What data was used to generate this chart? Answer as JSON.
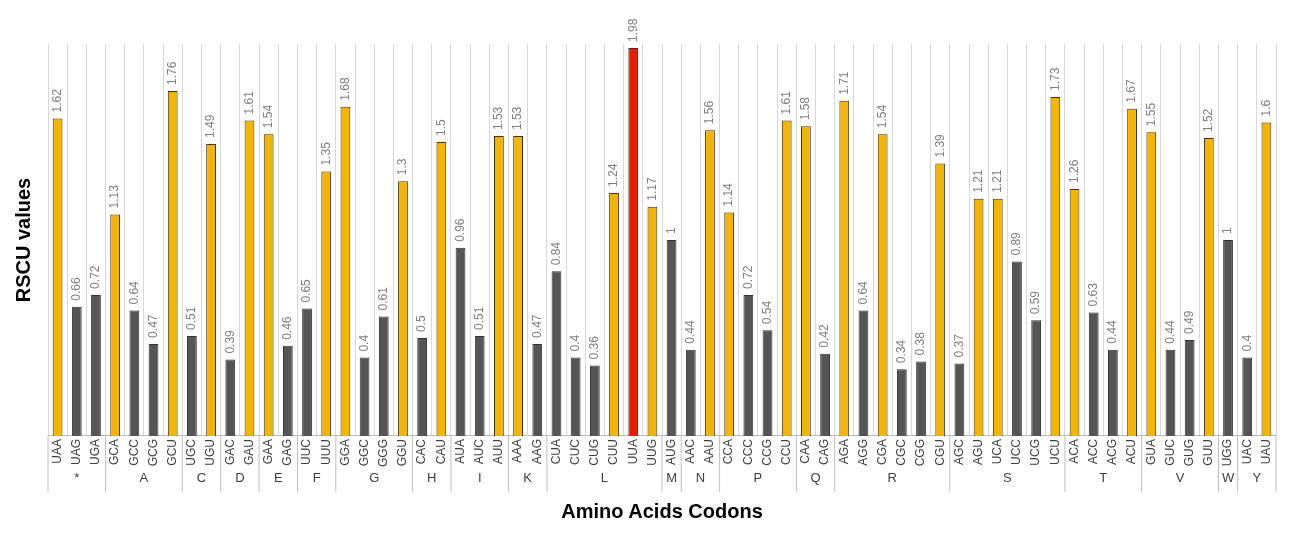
{
  "chart_data": {
    "type": "bar",
    "xlabel": "Amino Acids Codons",
    "ylabel": "RSCU values",
    "data_labels": true,
    "grid": "x",
    "legend": false,
    "categories": [
      "UAA",
      "UAG",
      "UGA",
      "GCA",
      "GCC",
      "GCG",
      "GCU",
      "UGC",
      "UGU",
      "GAC",
      "GAU",
      "GAA",
      "GAG",
      "UUC",
      "UUU",
      "GGA",
      "GGC",
      "GGG",
      "GGU",
      "CAC",
      "CAU",
      "AUA",
      "AUC",
      "AUU",
      "AAA",
      "AAG",
      "CUA",
      "CUC",
      "CUG",
      "CUU",
      "UUA",
      "UUG",
      "AUG",
      "AAC",
      "AAU",
      "CCA",
      "CCC",
      "CCG",
      "CCU",
      "CAA",
      "CAG",
      "AGA",
      "AGG",
      "CGA",
      "CGC",
      "CGG",
      "CGU",
      "AGC",
      "AGU",
      "UCA",
      "UCC",
      "UCG",
      "UCU",
      "ACA",
      "ACC",
      "ACG",
      "ACU",
      "GUA",
      "GUC",
      "GUG",
      "GUU",
      "UGG",
      "UAC",
      "UAU"
    ],
    "series": [
      {
        "name": "*",
        "x": [
          "UAA",
          "UAG",
          "UGA"
        ],
        "values": [
          1.62,
          0.66,
          0.72
        ],
        "colors": [
          "#f5b400",
          "#555555",
          "#555555"
        ]
      },
      {
        "name": "A",
        "x": [
          "GCA",
          "GCC",
          "GCG",
          "GCU"
        ],
        "values": [
          1.13,
          0.64,
          0.47,
          1.76
        ],
        "colors": [
          "#f5b400",
          "#555555",
          "#555555",
          "#f5b400"
        ]
      },
      {
        "name": "C",
        "x": [
          "UGC",
          "UGU"
        ],
        "values": [
          0.51,
          1.49
        ],
        "colors": [
          "#555555",
          "#f5b400"
        ]
      },
      {
        "name": "D",
        "x": [
          "GAC",
          "GAU"
        ],
        "values": [
          0.39,
          1.61
        ],
        "colors": [
          "#555555",
          "#f5b400"
        ]
      },
      {
        "name": "E",
        "x": [
          "GAA",
          "GAG"
        ],
        "values": [
          1.54,
          0.46
        ],
        "colors": [
          "#f5b400",
          "#555555"
        ]
      },
      {
        "name": "F",
        "x": [
          "UUC",
          "UUU"
        ],
        "values": [
          0.65,
          1.35
        ],
        "colors": [
          "#555555",
          "#f5b400"
        ]
      },
      {
        "name": "G",
        "x": [
          "GGA",
          "GGC",
          "GGG",
          "GGU"
        ],
        "values": [
          1.68,
          0.4,
          0.61,
          1.3
        ],
        "colors": [
          "#f5b400",
          "#555555",
          "#555555",
          "#f5b400"
        ]
      },
      {
        "name": "H",
        "x": [
          "CAC",
          "CAU"
        ],
        "values": [
          0.5,
          1.5
        ],
        "colors": [
          "#555555",
          "#f5b400"
        ]
      },
      {
        "name": "I",
        "x": [
          "AUA",
          "AUC",
          "AUU"
        ],
        "values": [
          0.96,
          0.51,
          1.53
        ],
        "colors": [
          "#555555",
          "#555555",
          "#f5b400"
        ]
      },
      {
        "name": "K",
        "x": [
          "AAA",
          "AAG"
        ],
        "values": [
          1.53,
          0.47
        ],
        "colors": [
          "#f5b400",
          "#555555"
        ]
      },
      {
        "name": "L",
        "x": [
          "CUA",
          "CUC",
          "CUG",
          "CUU",
          "UUA",
          "UUG"
        ],
        "values": [
          0.84,
          0.4,
          0.36,
          1.24,
          1.98,
          1.17
        ],
        "colors": [
          "#555555",
          "#555555",
          "#555555",
          "#f5b400",
          "#e81c00",
          "#f5b400"
        ]
      },
      {
        "name": "M",
        "x": [
          "AUG"
        ],
        "values": [
          1
        ],
        "colors": [
          "#555555"
        ]
      },
      {
        "name": "N",
        "x": [
          "AAC",
          "AAU"
        ],
        "values": [
          0.44,
          1.56
        ],
        "colors": [
          "#555555",
          "#f5b400"
        ]
      },
      {
        "name": "P",
        "x": [
          "CCA",
          "CCC",
          "CCG",
          "CCU"
        ],
        "values": [
          1.14,
          0.72,
          0.54,
          1.61
        ],
        "colors": [
          "#f5b400",
          "#555555",
          "#555555",
          "#f5b400"
        ]
      },
      {
        "name": "Q",
        "x": [
          "CAA",
          "CAG"
        ],
        "values": [
          1.58,
          0.42
        ],
        "colors": [
          "#f5b400",
          "#555555"
        ]
      },
      {
        "name": "R",
        "x": [
          "AGA",
          "AGG",
          "CGA",
          "CGC",
          "CGG",
          "CGU"
        ],
        "values": [
          1.71,
          0.64,
          1.54,
          0.34,
          0.38,
          1.39
        ],
        "colors": [
          "#f5b400",
          "#555555",
          "#f5b400",
          "#555555",
          "#555555",
          "#f5b400"
        ]
      },
      {
        "name": "S",
        "x": [
          "AGC",
          "AGU",
          "UCA",
          "UCC",
          "UCG",
          "UCU"
        ],
        "values": [
          0.37,
          1.21,
          1.21,
          0.89,
          0.59,
          1.73
        ],
        "colors": [
          "#555555",
          "#f5b400",
          "#f5b400",
          "#555555",
          "#555555",
          "#f5b400"
        ]
      },
      {
        "name": "T",
        "x": [
          "ACA",
          "ACC",
          "ACG",
          "ACU"
        ],
        "values": [
          1.26,
          0.63,
          0.44,
          1.67
        ],
        "colors": [
          "#f5b400",
          "#555555",
          "#555555",
          "#f5b400"
        ]
      },
      {
        "name": "V",
        "x": [
          "GUA",
          "GUC",
          "GUG",
          "GUU"
        ],
        "values": [
          1.55,
          0.44,
          0.49,
          1.52
        ],
        "colors": [
          "#f5b400",
          "#555555",
          "#555555",
          "#f5b400"
        ]
      },
      {
        "name": "W",
        "x": [
          "UGG"
        ],
        "values": [
          1
        ],
        "colors": [
          "#555555"
        ]
      },
      {
        "name": "Y",
        "x": [
          "UAC",
          "UAU"
        ],
        "values": [
          0.4,
          1.6
        ],
        "colors": [
          "#555555",
          "#f5b400"
        ]
      }
    ]
  }
}
